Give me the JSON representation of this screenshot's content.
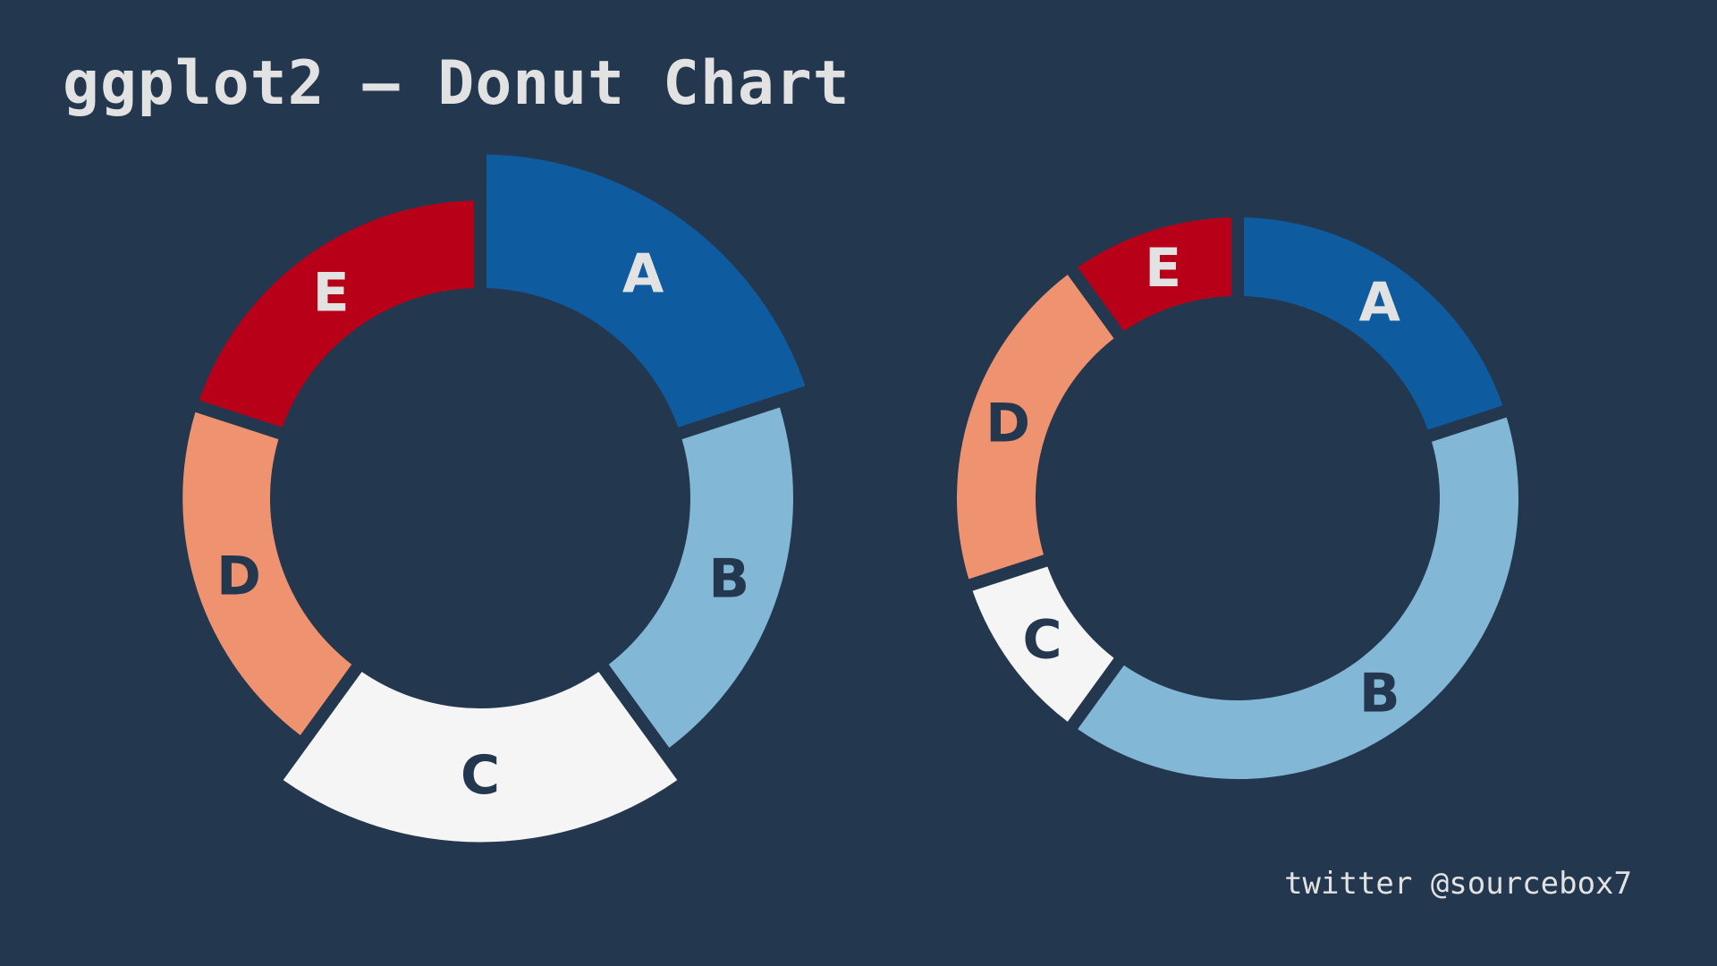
{
  "title": "ggplot2 – Donut Chart",
  "credit": "twitter @sourcebox7",
  "colors": {
    "background": "#23374f",
    "A": "#0f5ba0",
    "B": "#82b7d6",
    "C": "#f5f5f5",
    "D": "#ee9270",
    "E": "#b90019",
    "label_light": "#e2e2e2",
    "label_dark": "#23374f"
  },
  "chart_data": [
    {
      "type": "pie",
      "variant": "donut",
      "slices": [
        {
          "label": "A",
          "value": 20,
          "radius": 1.3
        },
        {
          "label": "B",
          "value": 20,
          "radius": 1.0
        },
        {
          "label": "C",
          "value": 20,
          "radius": 1.3
        },
        {
          "label": "D",
          "value": 20,
          "radius": 0.85
        },
        {
          "label": "E",
          "value": 20,
          "radius": 0.85
        }
      ]
    },
    {
      "type": "pie",
      "variant": "donut",
      "slices": [
        {
          "label": "A",
          "value": 20,
          "radius": 1.0
        },
        {
          "label": "B",
          "value": 40,
          "radius": 1.0
        },
        {
          "label": "C",
          "value": 10,
          "radius": 1.0
        },
        {
          "label": "D",
          "value": 20,
          "radius": 1.0
        },
        {
          "label": "E",
          "value": 10,
          "radius": 1.0
        }
      ]
    }
  ]
}
